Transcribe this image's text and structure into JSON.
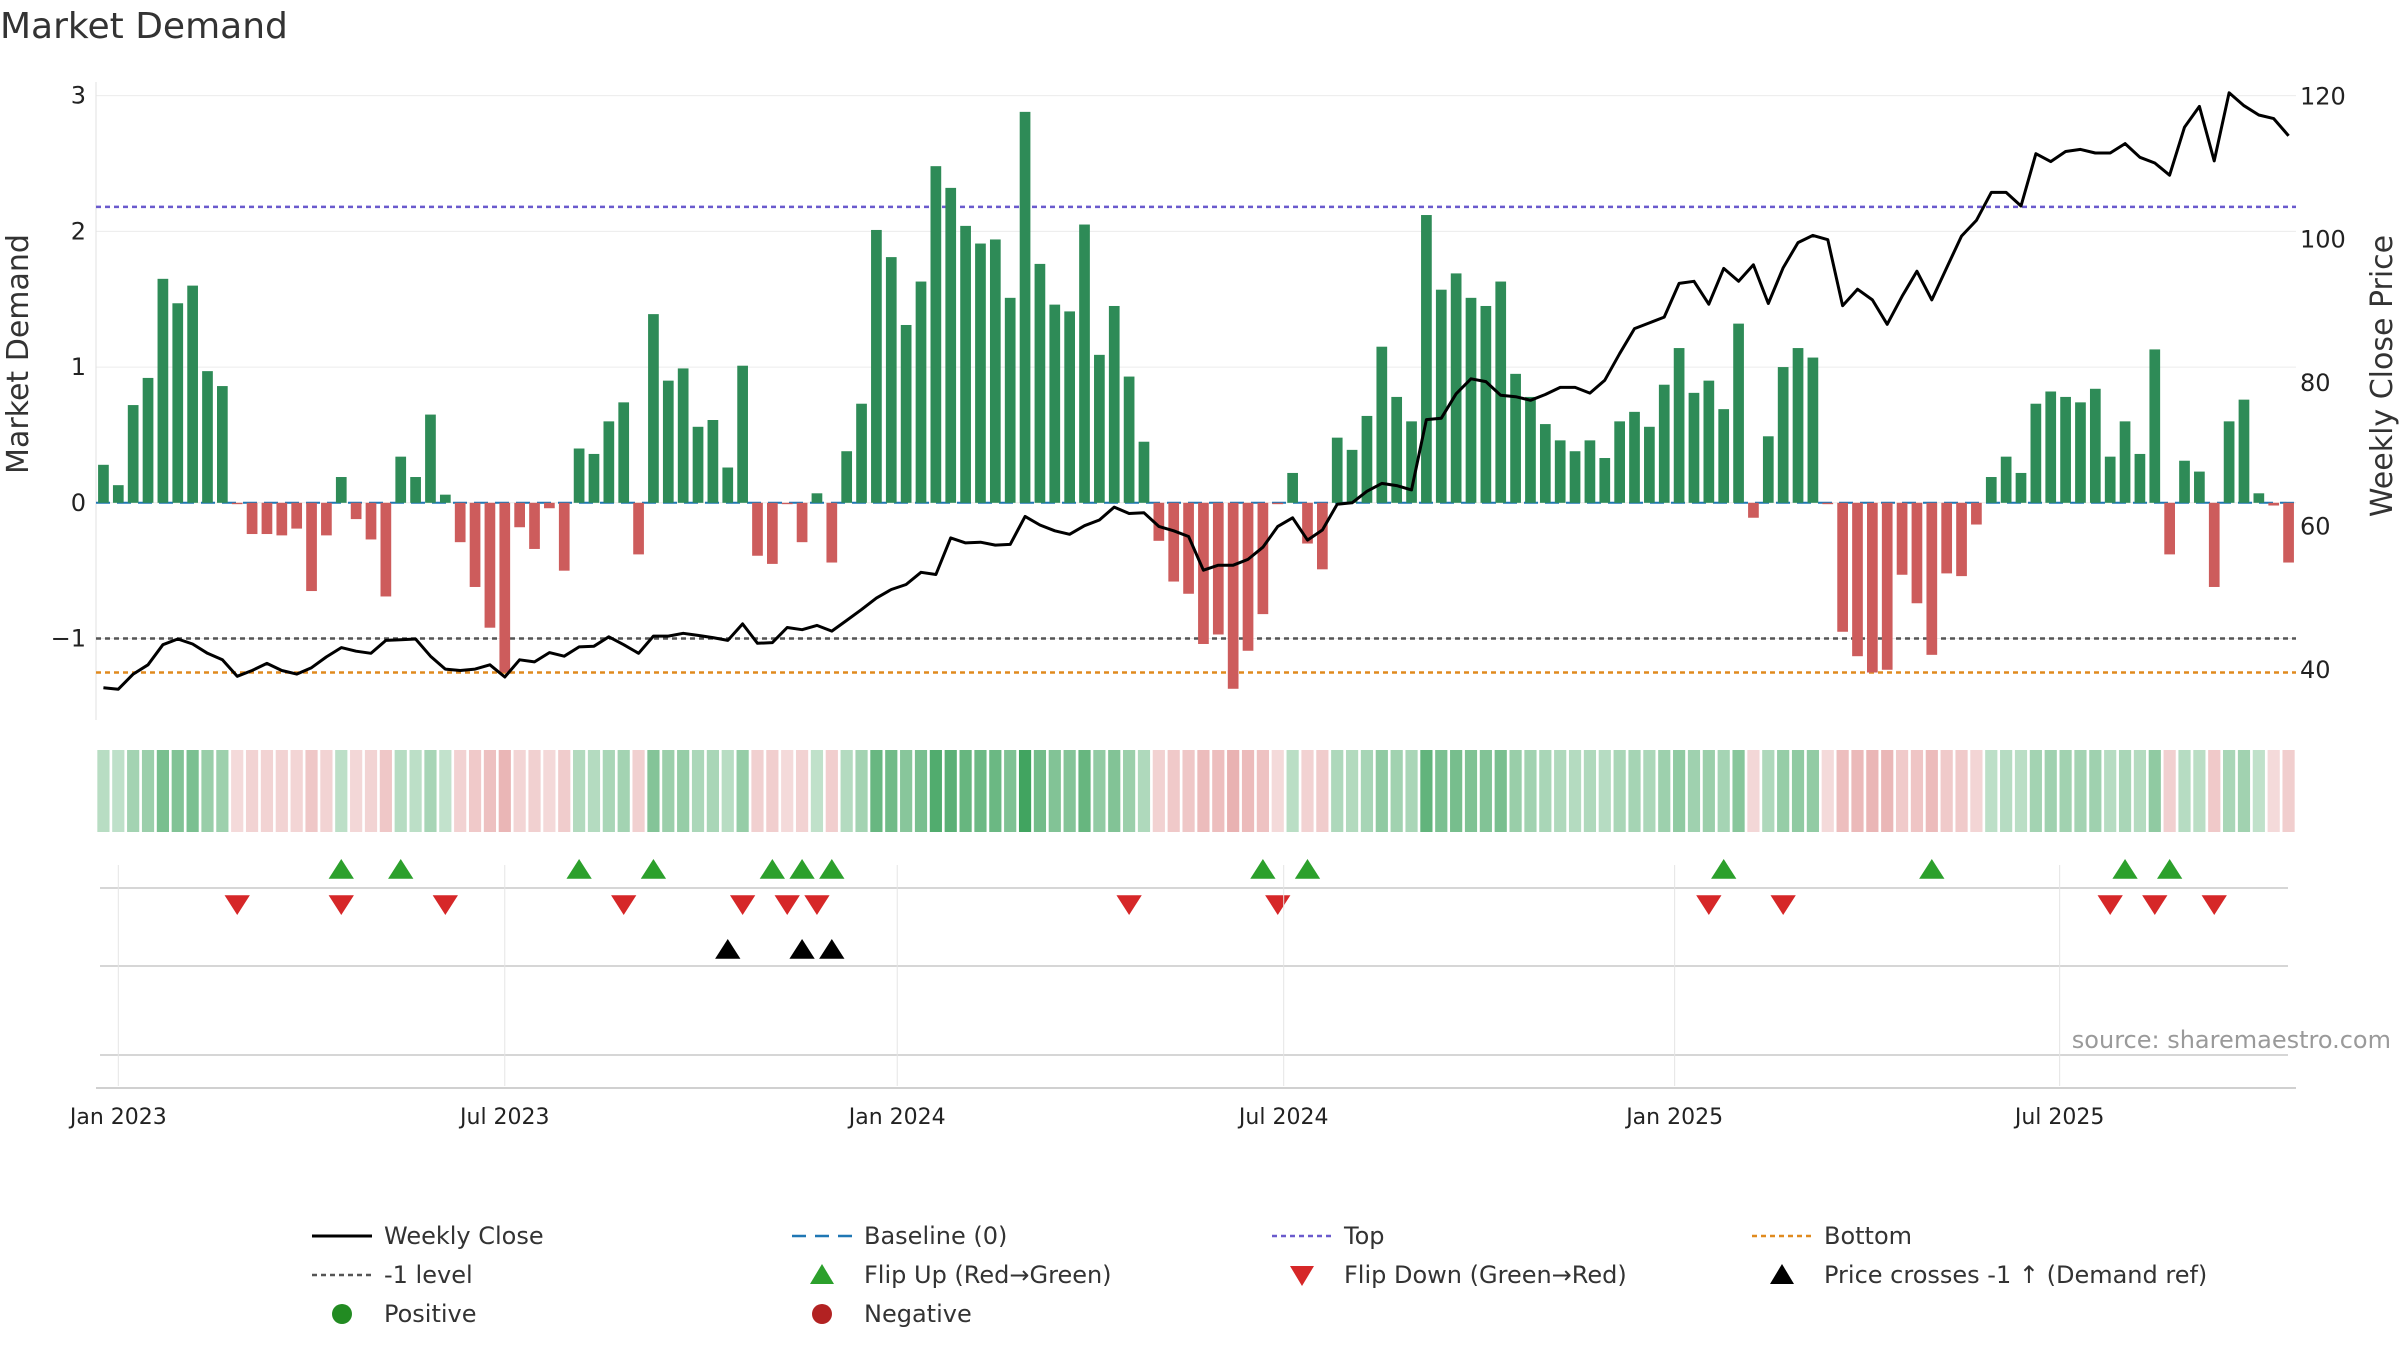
{
  "chart_data": {
    "type": "bar",
    "title": "Market Demand",
    "ylabel_left": "Market Demand",
    "ylabel_right": "Weekly Close Price",
    "ylim_left": [
      -1.6,
      3.1
    ],
    "ylim_right": [
      33,
      122
    ],
    "yticks_left": [
      3,
      2,
      1,
      0,
      -1
    ],
    "yticks_left_labels": [
      "3",
      "2",
      "1",
      "0",
      "−1"
    ],
    "yticks_right": [
      120,
      100,
      80,
      60,
      40
    ],
    "x_ticks": [
      {
        "label": "Jan 2023",
        "week": 1
      },
      {
        "label": "Jul 2023",
        "week": 27
      },
      {
        "label": "Jan 2024",
        "week": 53.4
      },
      {
        "label": "Jul 2024",
        "week": 79.4
      },
      {
        "label": "Jan 2025",
        "week": 105.7
      },
      {
        "label": "Jul 2025",
        "week": 131.6
      }
    ],
    "levels": {
      "top": 2.18,
      "minus1": -1.0,
      "bottom": -1.25,
      "baseline": 0
    },
    "demand": [
      0.28,
      0.13,
      0.72,
      0.92,
      1.65,
      1.47,
      1.6,
      0.97,
      0.86,
      -0.01,
      -0.23,
      -0.23,
      -0.24,
      -0.19,
      -0.65,
      -0.24,
      0.19,
      -0.12,
      -0.27,
      -0.69,
      0.34,
      0.19,
      0.65,
      0.06,
      -0.29,
      -0.62,
      -0.92,
      -1.25,
      -0.18,
      -0.34,
      -0.04,
      -0.5,
      0.4,
      0.36,
      0.6,
      0.74,
      -0.38,
      1.39,
      0.9,
      0.99,
      0.56,
      0.61,
      0.26,
      1.01,
      -0.39,
      -0.45,
      -0.01,
      -0.29,
      0.07,
      -0.44,
      0.38,
      0.73,
      2.01,
      1.81,
      1.31,
      1.63,
      2.48,
      2.32,
      2.04,
      1.91,
      1.94,
      1.51,
      2.88,
      1.76,
      1.46,
      1.41,
      2.05,
      1.09,
      1.45,
      0.93,
      0.45,
      -0.28,
      -0.58,
      -0.67,
      -1.04,
      -0.97,
      -1.37,
      -1.09,
      -0.82,
      -0.01,
      0.22,
      -0.3,
      -0.49,
      0.48,
      0.39,
      0.64,
      1.15,
      0.78,
      0.6,
      2.12,
      1.57,
      1.69,
      1.51,
      1.45,
      1.63,
      0.95,
      0.78,
      0.58,
      0.46,
      0.38,
      0.46,
      0.33,
      0.6,
      0.67,
      0.56,
      0.87,
      1.14,
      0.81,
      0.9,
      0.69,
      1.32,
      -0.11,
      0.49,
      1.0,
      1.14,
      1.07,
      -0.01,
      -0.95,
      -1.13,
      -1.25,
      -1.23,
      -0.53,
      -0.74,
      -1.12,
      -0.52,
      -0.54,
      -0.16,
      0.19,
      0.34,
      0.22,
      0.73,
      0.82,
      0.78,
      0.74,
      0.84,
      0.34,
      0.6,
      0.36,
      1.13,
      -0.38,
      0.31,
      0.23,
      -0.62,
      0.6,
      0.76,
      0.07,
      -0.02,
      -0.44
    ],
    "close": [
      37.5,
      37.3,
      39.4,
      40.7,
      43.5,
      44.3,
      43.6,
      42.3,
      41.4,
      39.1,
      39.9,
      40.9,
      39.9,
      39.4,
      40.3,
      41.8,
      43.1,
      42.6,
      42.3,
      44.1,
      44.2,
      44.3,
      41.9,
      40.1,
      39.9,
      40.1,
      40.7,
      39.0,
      41.4,
      41.1,
      42.4,
      41.9,
      43.2,
      43.3,
      44.6,
      43.5,
      42.3,
      44.7,
      44.7,
      45.1,
      44.8,
      44.5,
      44.1,
      46.4,
      43.7,
      43.8,
      45.9,
      45.6,
      46.2,
      45.4,
      46.9,
      48.4,
      50.0,
      51.2,
      51.9,
      53.6,
      53.3,
      58.4,
      57.7,
      57.8,
      57.4,
      57.5,
      61.4,
      60.2,
      59.4,
      58.9,
      60.1,
      60.9,
      62.7,
      61.8,
      61.9,
      60.0,
      59.4,
      58.6,
      53.9,
      54.6,
      54.6,
      55.4,
      57.1,
      60.0,
      61.2,
      58.1,
      59.5,
      63.1,
      63.3,
      64.9,
      66.0,
      65.7,
      65.1,
      74.9,
      75.1,
      78.5,
      80.6,
      80.2,
      78.3,
      78.1,
      77.6,
      78.4,
      79.4,
      79.4,
      78.6,
      80.4,
      84.1,
      87.6,
      88.4,
      89.2,
      93.9,
      94.2,
      91.0,
      96.0,
      94.2,
      96.5,
      91.1,
      96.1,
      99.6,
      100.6,
      100.0,
      90.8,
      93.1,
      91.6,
      88.2,
      92.1,
      95.6,
      91.6,
      96.1,
      100.5,
      102.7,
      106.6,
      106.6,
      104.7,
      112.0,
      110.9,
      112.3,
      112.6,
      112.1,
      112.1,
      113.4,
      111.5,
      110.7,
      109.0,
      115.7,
      118.6,
      111.0,
      120.5,
      118.7,
      117.4,
      116.9,
      114.5
    ],
    "flip_up_weeks": [
      16,
      20,
      32,
      37,
      45,
      47,
      49,
      78,
      81,
      109,
      123,
      136,
      139
    ],
    "flip_down_weeks": [
      9,
      16,
      23,
      35,
      43,
      46,
      48,
      69,
      79,
      108,
      113,
      135,
      138,
      142
    ],
    "price_cross_weeks": [
      42,
      47,
      49
    ],
    "legend": [
      {
        "label": "Weekly Close",
        "kind": "line",
        "color": "#000000"
      },
      {
        "label": "Baseline (0)",
        "kind": "dash",
        "color": "#1f77b4"
      },
      {
        "label": "Top",
        "kind": "dot",
        "color": "#6a5acd"
      },
      {
        "label": "Bottom",
        "kind": "dot",
        "color": "#e08a1e"
      },
      {
        "label": "-1 level",
        "kind": "dot",
        "color": "#555555"
      },
      {
        "label": "Flip Up (Red→Green)",
        "kind": "tri-up",
        "color": "#2ca02c"
      },
      {
        "label": "Flip Down (Green→Red)",
        "kind": "tri-down",
        "color": "#d62728"
      },
      {
        "label": "Price crosses -1 ↑ (Demand ref)",
        "kind": "tri-up",
        "color": "#000000"
      },
      {
        "label": "Positive",
        "kind": "circle",
        "color": "#228B22"
      },
      {
        "label": "Negative",
        "kind": "circle",
        "color": "#B22222"
      }
    ],
    "colors": {
      "positive_bar": "#2e8b57",
      "negative_bar": "#cd5c5c",
      "close_line": "#000000",
      "top_line": "#6a5acd",
      "bottom_line": "#e08a1e",
      "minus1_line": "#555555",
      "baseline": "#1f77b4",
      "flip_up": "#2ca02c",
      "flip_down": "#d62728",
      "cross": "#000000"
    },
    "source": "source: sharemaestro.com"
  }
}
